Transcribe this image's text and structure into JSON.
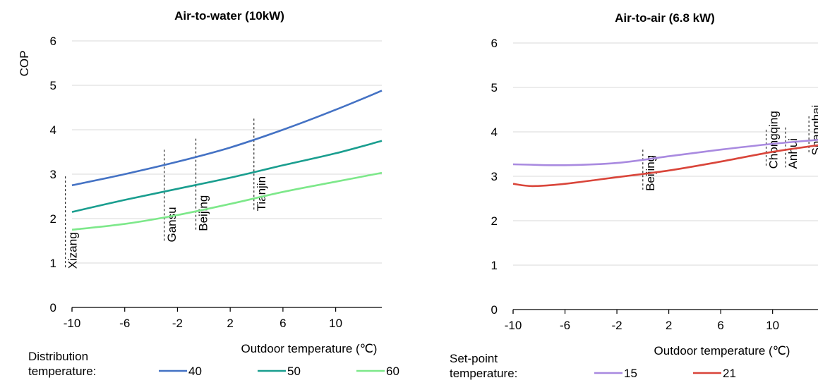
{
  "chart_data": [
    {
      "type": "line",
      "title": "Air-to-water (10kW)",
      "ylabel": "COP",
      "xlabel": "Outdoor temperature (℃)",
      "xlim": [
        -10,
        13.5
      ],
      "ylim": [
        0,
        6
      ],
      "xticks": [
        -10,
        -6,
        -2,
        2,
        6,
        10
      ],
      "yticks": [
        0,
        1,
        2,
        3,
        4,
        5,
        6
      ],
      "grid": "horizontal",
      "legend_title": "Distribution\ntemperature:",
      "legend_placement": "bottom",
      "series": [
        {
          "name": "40",
          "color": "#4472c4",
          "x": [
            -10,
            -6,
            -2,
            2,
            6,
            10,
            13.5
          ],
          "y": [
            2.75,
            3.0,
            3.28,
            3.6,
            4.0,
            4.45,
            4.88
          ]
        },
        {
          "name": "50",
          "color": "#1a9e8f",
          "x": [
            -10,
            -6,
            -2,
            2,
            6,
            10,
            13.5
          ],
          "y": [
            2.15,
            2.42,
            2.67,
            2.92,
            3.2,
            3.47,
            3.75
          ]
        },
        {
          "name": "60",
          "color": "#7de88a",
          "x": [
            -10,
            -6,
            -2,
            2,
            6,
            10,
            13.5
          ],
          "y": [
            1.75,
            1.88,
            2.08,
            2.33,
            2.6,
            2.83,
            3.03
          ]
        }
      ],
      "annotations": [
        {
          "label": "Xizang",
          "x": -10.5,
          "y_low": 0.9,
          "y_high": 2.95
        },
        {
          "label": "Gansu",
          "x": -3.0,
          "y_low": 1.5,
          "y_high": 3.55
        },
        {
          "label": "Beijing",
          "x": -0.6,
          "y_low": 1.75,
          "y_high": 3.8
        },
        {
          "label": "Tianjin",
          "x": 3.8,
          "y_low": 2.2,
          "y_high": 4.25
        }
      ]
    },
    {
      "type": "line",
      "title": "Air-to-air (6.8 kW)",
      "ylabel": "",
      "xlabel": "Outdoor temperature (℃)",
      "xlim": [
        -10,
        13.5
      ],
      "ylim": [
        0,
        6
      ],
      "xticks": [
        -10,
        -6,
        -2,
        2,
        6,
        10
      ],
      "yticks": [
        0,
        1,
        2,
        3,
        4,
        5,
        6
      ],
      "grid": "horizontal",
      "legend_title": "Set-point\ntemperature:",
      "legend_placement": "bottom",
      "series": [
        {
          "name": "15",
          "color": "#a98ae0",
          "x": [
            -10,
            -6,
            -2,
            2,
            6,
            10,
            13.5
          ],
          "y": [
            3.27,
            3.25,
            3.3,
            3.45,
            3.6,
            3.73,
            3.82
          ]
        },
        {
          "name": "21",
          "color": "#d9453a",
          "x": [
            -10,
            -8.5,
            -6,
            -2,
            2,
            6,
            10,
            13.5
          ],
          "y": [
            2.83,
            2.78,
            2.83,
            2.98,
            3.13,
            3.33,
            3.55,
            3.7
          ]
        }
      ],
      "annotations": [
        {
          "label": "Beijing",
          "x": 0.0,
          "y_low": 2.7,
          "y_high": 3.6
        },
        {
          "label": "Chongqing",
          "x": 9.5,
          "y_low": 3.2,
          "y_high": 4.05
        },
        {
          "label": "Anhui",
          "x": 11.0,
          "y_low": 3.2,
          "y_high": 4.1
        },
        {
          "label": "Shanghai",
          "x": 12.8,
          "y_low": 3.5,
          "y_high": 4.35
        }
      ]
    }
  ]
}
